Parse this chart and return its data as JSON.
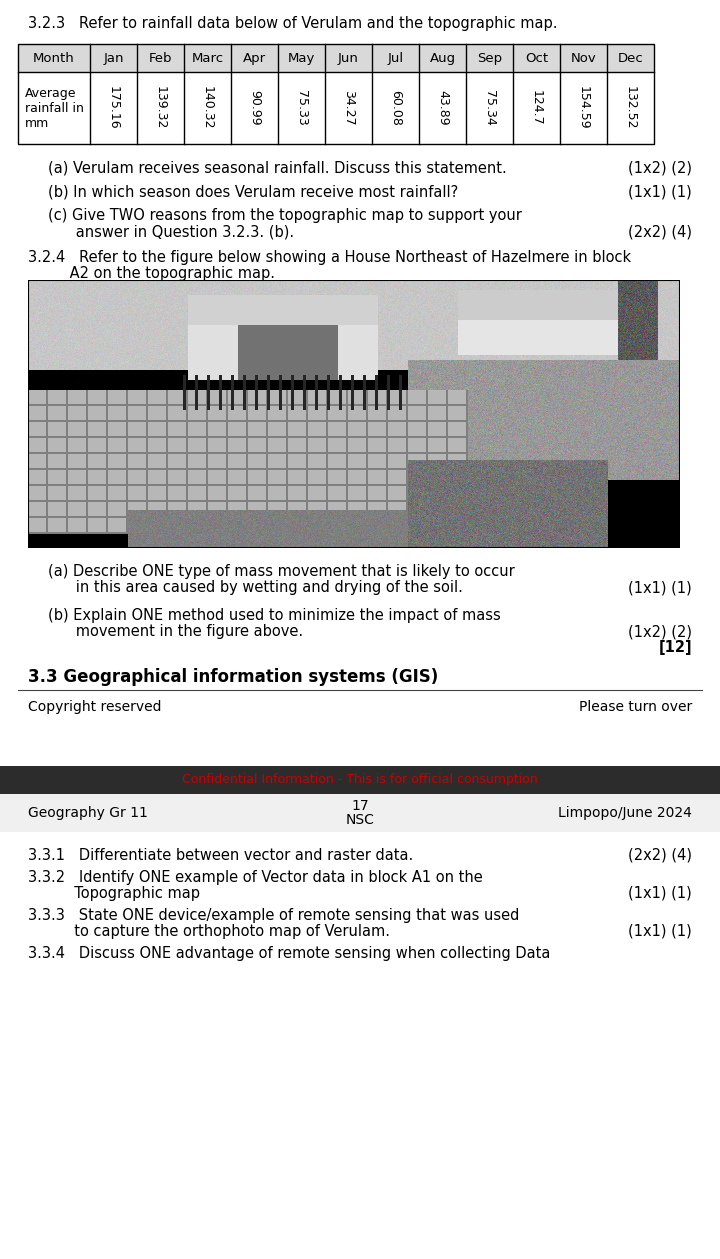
{
  "section_323_header": "3.2.3   Refer to rainfall data below of Verulam and the topographic map.",
  "table_header": [
    "Month",
    "Jan",
    "Feb",
    "Marc",
    "Apr",
    "May",
    "Jun",
    "Jul",
    "Aug",
    "Sep",
    "Oct",
    "Nov",
    "Dec"
  ],
  "table_row_label": "Average\nrainfall in\nmm",
  "table_values": [
    "175.16",
    "139.32",
    "140.32",
    "90.99",
    "75.33",
    "34.27",
    "60.08",
    "43.89",
    "75.34",
    "124.7",
    "154.59",
    "132.52"
  ],
  "q_a": "(a) Verulam receives seasonal rainfall. Discuss this statement.",
  "q_a_marks": "(1x2) (2)",
  "q_b": "(b) In which season does Verulam receive most rainfall?",
  "q_b_marks": "(1x1) (1)",
  "q_c_line1": "(c) Give TWO reasons from the topographic map to support your",
  "q_c_line2": "      answer in Question 3.2.3. (b).",
  "q_c_marks": "(2x2) (4)",
  "section_324_line1": "3.2.4   Refer to the figure below showing a House Northeast of Hazelmere in block",
  "section_324_line2": "         A2 on the topographic map.",
  "q_d_line1": "(a) Describe ONE type of mass movement that is likely to occur",
  "q_d_line2": "      in this area caused by wetting and drying of the soil.",
  "q_d_marks": "(1x1) (1)",
  "q_e_line1": "(b) Explain ONE method used to minimize the impact of mass",
  "q_e_line2": "      movement in the figure above.",
  "q_e_marks": "(1x2) (2)",
  "total_marks": "[12]",
  "section_33_header": "3.3 Geographical information systems (GIS)",
  "copyright_left": "Copyright reserved",
  "copyright_right": "Please turn over",
  "confidential_text": "Confidential Information - This is for official consumption",
  "confidential_color": "#cc0000",
  "footer_left": "Geography Gr 11",
  "footer_center_line1": "17",
  "footer_center_line2": "NSC",
  "footer_right": "Limpopo/June 2024",
  "q_331": "3.3.1   Differentiate between vector and raster data.",
  "q_331_marks": "(2x2) (4)",
  "q_332_line1": "3.3.2   Identify ONE example of Vector data in block A1 on the",
  "q_332_line2": "          Topographic map",
  "q_332_marks": "(1x1) (1)",
  "q_333_line1": "3.3.3   State ONE device/example of remote sensing that was used",
  "q_333_line2": "          to capture the orthophoto map of Verulam.",
  "q_333_marks": "(1x1) (1)",
  "q_334": "3.3.4   Discuss ONE advantage of remote sensing when collecting Data",
  "bg_color": "#ffffff",
  "text_color": "#000000",
  "table_header_bg": "#d9d9d9",
  "table_border_color": "#000000",
  "dark_banner_color": "#2c2c2c",
  "footer_bg_color": "#f0f0f0"
}
